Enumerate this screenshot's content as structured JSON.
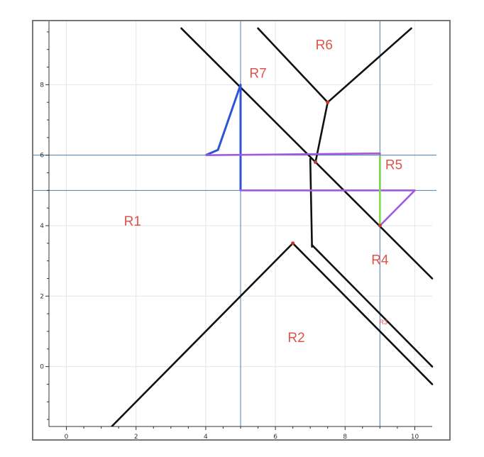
{
  "diagram": {
    "x_axis": {
      "min": -0.5,
      "max": 10.5,
      "ticks": [
        0,
        2,
        4,
        6,
        8,
        10
      ]
    },
    "y_axis": {
      "min": -1.7,
      "max": 9.8,
      "ticks": [
        0,
        2,
        4,
        6,
        8
      ]
    },
    "grid": true,
    "reference_lines": {
      "vertical": [
        5,
        9
      ],
      "horizontal": [
        5,
        6
      ],
      "color": "#4a7fb0"
    },
    "black_lines": [
      {
        "id": "long-diagonal",
        "points": [
          [
            3.3,
            9.6
          ],
          [
            10.5,
            2.5
          ]
        ]
      },
      {
        "id": "r6-left-edge",
        "points": [
          [
            5.5,
            9.6
          ],
          [
            7.5,
            7.5
          ]
        ]
      },
      {
        "id": "r6-right-edge",
        "points": [
          [
            7.5,
            7.5
          ],
          [
            9.9,
            9.6
          ]
        ]
      },
      {
        "id": "r6-stem",
        "points": [
          [
            7.5,
            7.5
          ],
          [
            7.15,
            5.8
          ]
        ]
      },
      {
        "id": "center-vertical",
        "points": [
          [
            7.0,
            5.9
          ],
          [
            7.05,
            3.4
          ]
        ]
      },
      {
        "id": "r2-left-edge",
        "points": [
          [
            1.3,
            -1.7
          ],
          [
            6.5,
            3.5
          ]
        ]
      },
      {
        "id": "r3-outer-edge",
        "points": [
          [
            6.5,
            3.5
          ],
          [
            10.5,
            -0.5
          ]
        ]
      },
      {
        "id": "r3-inner-edge",
        "points": [
          [
            7.05,
            3.45
          ],
          [
            10.5,
            0.0
          ]
        ]
      }
    ],
    "blue_path": {
      "color": "#2f55d4",
      "points": [
        [
          4.0,
          6.0
        ],
        [
          4.35,
          6.15
        ],
        [
          5.0,
          8.0
        ],
        [
          5.0,
          5.0
        ]
      ]
    },
    "purple_path": {
      "color": "#a259e0",
      "points": [
        [
          4.0,
          6.0
        ],
        [
          9.0,
          6.05
        ],
        [
          9.0,
          5.0
        ],
        [
          5.0,
          5.0
        ],
        [
          10.0,
          5.0
        ],
        [
          9.0,
          4.0
        ]
      ]
    },
    "green_path": {
      "color": "#7fdc4a",
      "points": [
        [
          9.0,
          6.0
        ],
        [
          9.0,
          4.0
        ]
      ]
    },
    "vertex_dots": [
      [
        7.5,
        7.5
      ],
      [
        7.15,
        5.8
      ],
      [
        6.5,
        3.5
      ],
      [
        9.0,
        4.0
      ]
    ],
    "regions": [
      {
        "label": "R1",
        "x": 1.9,
        "y": 4.0
      },
      {
        "label": "R2",
        "x": 6.6,
        "y": 0.7
      },
      {
        "label": "R3",
        "x": 9.1,
        "y": 1.2,
        "small": true
      },
      {
        "label": "R4",
        "x": 9.0,
        "y": 2.9
      },
      {
        "label": "R5",
        "x": 9.4,
        "y": 5.6
      },
      {
        "label": "R6",
        "x": 7.4,
        "y": 9.0
      },
      {
        "label": "R7",
        "x": 5.5,
        "y": 8.2
      }
    ]
  }
}
